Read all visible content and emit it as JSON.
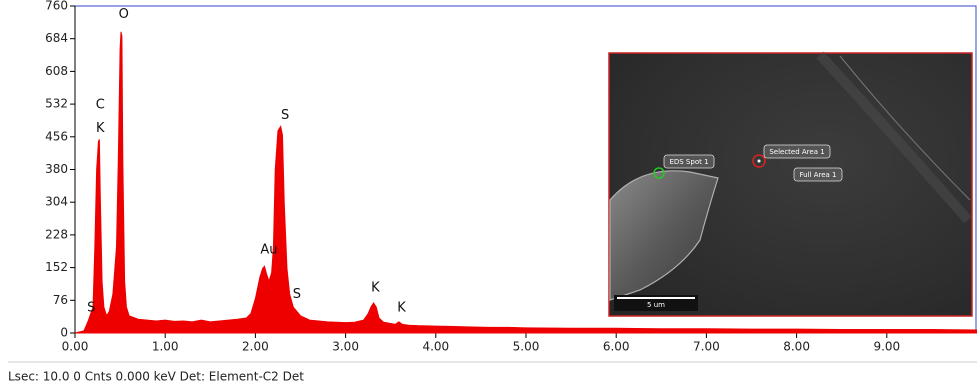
{
  "chart_data": {
    "type": "area",
    "color": "#ee0000",
    "frame_color": "#3344cc",
    "xlim": [
      0,
      10
    ],
    "ylim": [
      0,
      760
    ],
    "yticks": [
      0,
      76,
      152,
      228,
      304,
      380,
      456,
      532,
      608,
      684,
      760
    ],
    "xticks": [
      {
        "value": 0,
        "label": "0.00"
      },
      {
        "value": 1,
        "label": "1.00"
      },
      {
        "value": 2,
        "label": "2.00"
      },
      {
        "value": 3,
        "label": "3.00"
      },
      {
        "value": 4,
        "label": "4.00"
      },
      {
        "value": 5,
        "label": "5.00"
      },
      {
        "value": 6,
        "label": "6.00"
      },
      {
        "value": 7,
        "label": "7.00"
      },
      {
        "value": 8,
        "label": "8.00"
      },
      {
        "value": 9,
        "label": "9.00"
      }
    ],
    "x": [
      0.0,
      0.1,
      0.15,
      0.2,
      0.22,
      0.24,
      0.26,
      0.27,
      0.28,
      0.3,
      0.32,
      0.35,
      0.38,
      0.42,
      0.46,
      0.48,
      0.5,
      0.51,
      0.52,
      0.53,
      0.55,
      0.57,
      0.6,
      0.7,
      0.8,
      0.9,
      1.0,
      1.1,
      1.2,
      1.3,
      1.4,
      1.5,
      1.6,
      1.7,
      1.8,
      1.9,
      1.95,
      2.0,
      2.05,
      2.08,
      2.1,
      2.12,
      2.15,
      2.18,
      2.2,
      2.22,
      2.25,
      2.28,
      2.3,
      2.32,
      2.35,
      2.38,
      2.42,
      2.46,
      2.5,
      2.6,
      2.7,
      2.8,
      2.9,
      3.0,
      3.1,
      3.2,
      3.25,
      3.28,
      3.31,
      3.34,
      3.37,
      3.42,
      3.5,
      3.55,
      3.59,
      3.63,
      3.7,
      3.8,
      4.0,
      4.2,
      4.4,
      4.6,
      4.8,
      5.0,
      5.5,
      6.0,
      6.5,
      7.0,
      7.5,
      8.0,
      8.5,
      9.0,
      9.5,
      10.0
    ],
    "values": [
      0,
      5,
      30,
      60,
      200,
      380,
      445,
      450,
      320,
      120,
      60,
      40,
      50,
      90,
      200,
      400,
      660,
      700,
      690,
      400,
      120,
      60,
      40,
      32,
      30,
      28,
      30,
      27,
      28,
      26,
      30,
      26,
      28,
      30,
      32,
      35,
      45,
      80,
      130,
      150,
      155,
      140,
      120,
      140,
      200,
      380,
      470,
      480,
      460,
      300,
      150,
      90,
      60,
      50,
      40,
      30,
      28,
      26,
      25,
      24,
      25,
      30,
      45,
      60,
      70,
      60,
      35,
      25,
      22,
      20,
      26,
      20,
      18,
      17,
      16,
      15,
      14,
      13,
      13,
      12,
      11,
      11,
      10,
      10,
      9,
      9,
      8,
      8,
      8,
      7
    ],
    "annotations": [
      {
        "text": "S",
        "x": 0.18,
        "y": 58
      },
      {
        "text": "C",
        "x": 0.28,
        "y": 530
      },
      {
        "text": "K",
        "x": 0.28,
        "y": 475
      },
      {
        "text": "O",
        "x": 0.54,
        "y": 740
      },
      {
        "text": "Au",
        "x": 2.15,
        "y": 193
      },
      {
        "text": "S",
        "x": 2.33,
        "y": 505
      },
      {
        "text": "S",
        "x": 2.46,
        "y": 90
      },
      {
        "text": "K",
        "x": 3.33,
        "y": 105
      },
      {
        "text": "K",
        "x": 3.62,
        "y": 58
      }
    ]
  },
  "inset": {
    "labels": [
      "EDS Spot 1",
      "Selected Area 1",
      "Full Area 1"
    ],
    "scale_bar": "5 um"
  },
  "status": "Lsec: 10.0 0 Cnts  0.000 keV Det: Element-C2 Det"
}
